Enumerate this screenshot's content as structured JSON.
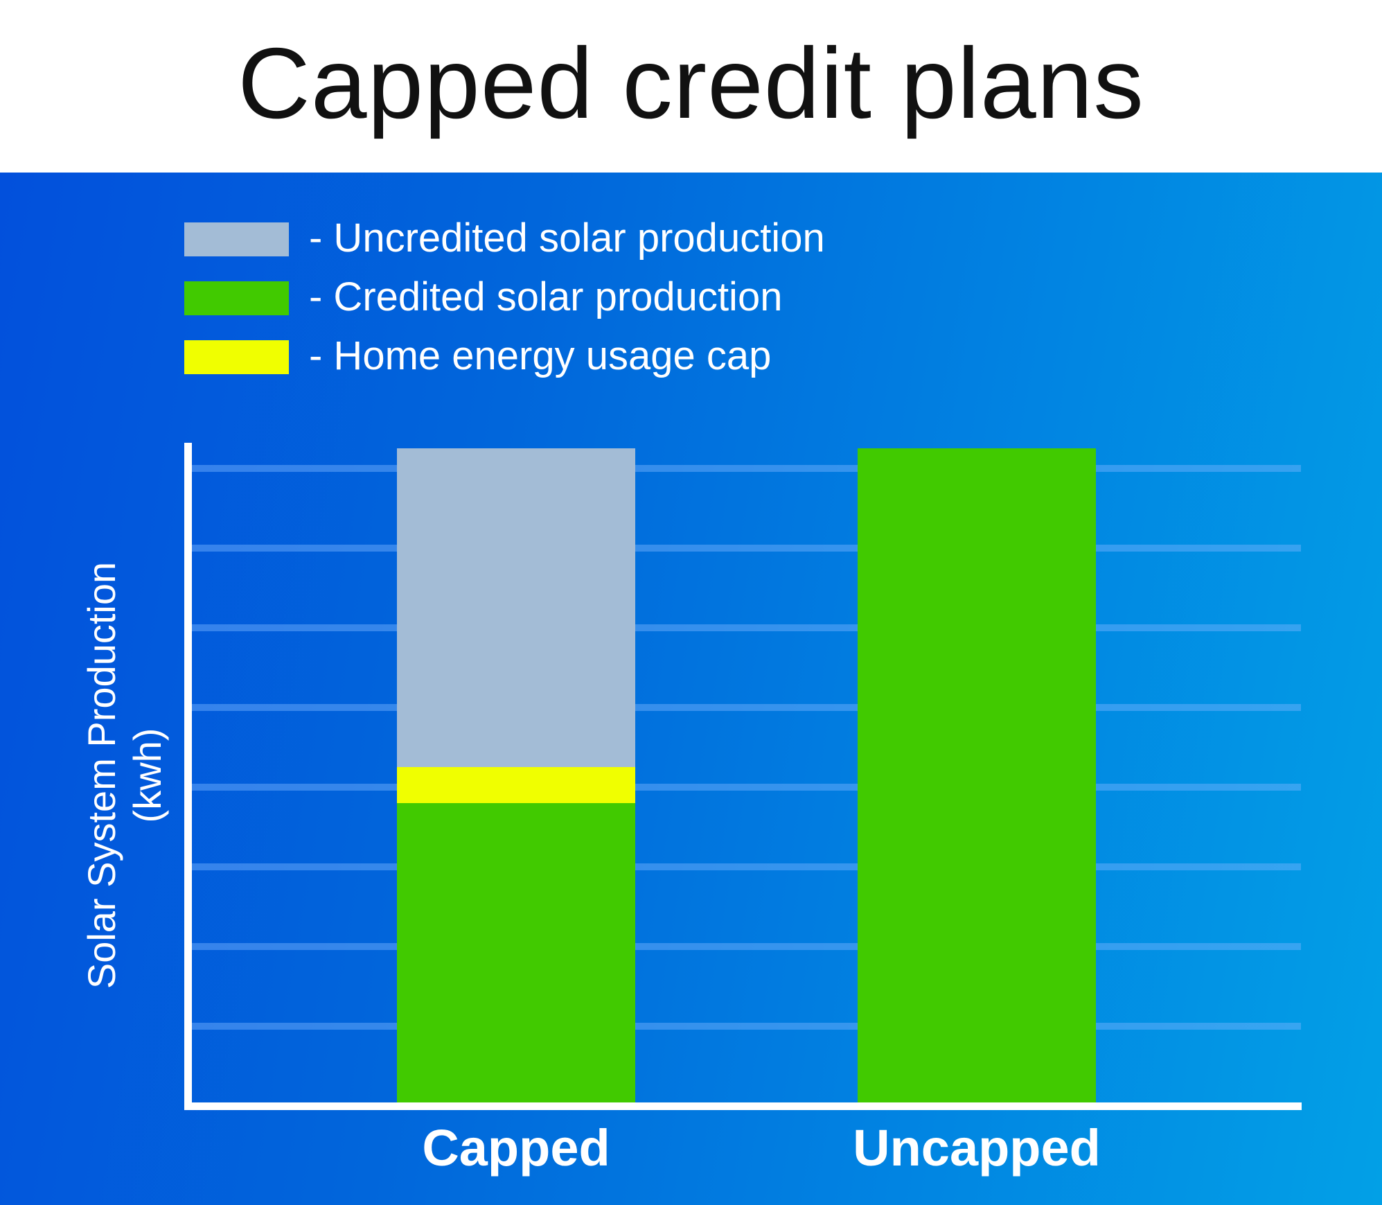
{
  "title": "Capped credit plans",
  "legend": [
    {
      "label": "- Uncredited solar production",
      "color": "#a3bcd6"
    },
    {
      "label": "- Credited solar production",
      "color": "#41ca00"
    },
    {
      "label": "- Home energy usage cap",
      "color": "#f0ff00"
    }
  ],
  "axes": {
    "ylabel_line1": "Solar System Production",
    "ylabel_line2": "(kwh)"
  },
  "categories": [
    "Capped",
    "Uncapped"
  ],
  "colors": {
    "background_start": "#0250dc",
    "background_end": "#02a0e6",
    "uncredited": "#a3bcd6",
    "credited": "#41ca00",
    "cap": "#f0ff00",
    "axis": "#ffffff",
    "title_text": "#111111"
  },
  "chart_data": {
    "type": "bar",
    "stacked": true,
    "title": "Capped credit plans",
    "xlabel": "",
    "ylabel": "Solar System Production (kwh)",
    "categories": [
      "Capped",
      "Uncapped"
    ],
    "series": [
      {
        "name": "Credited solar production",
        "color": "#41ca00",
        "values": [
          3.76,
          8.21
        ]
      },
      {
        "name": "Home energy usage cap",
        "color": "#f0ff00",
        "values": [
          0.45,
          0
        ]
      },
      {
        "name": "Uncredited solar production",
        "color": "#a3bcd6",
        "values": [
          4.0,
          0
        ]
      }
    ],
    "ylim": [
      0,
      8.21
    ],
    "y_ticks_labeled": false,
    "gridlines": 8,
    "grid": true,
    "legend_position": "top-left",
    "note": "Values in gridline units (no numeric tick labels shown); both bars reach the same total height."
  }
}
